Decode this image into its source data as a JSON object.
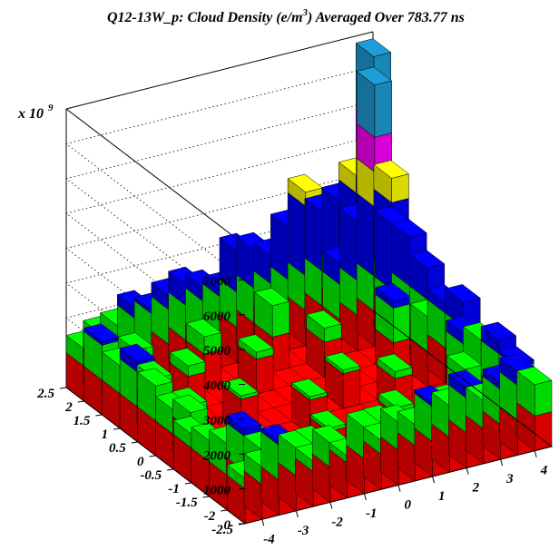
{
  "chart_data": {
    "type": "lego",
    "title": "Q12-13W_p: Cloud Density (e/m",
    "title_sup": "3",
    "title_tail": ") Averaged Over 783.77 ns",
    "z_multiplier": "x 10",
    "z_multiplier_exp": "9",
    "zlim": [
      0,
      8000
    ],
    "z_ticks": [
      "0",
      "1000",
      "2000",
      "3000",
      "4000",
      "5000",
      "6000",
      "7000"
    ],
    "x_ticks": [
      "-4",
      "-3",
      "-2",
      "-1",
      "0",
      "1",
      "2",
      "3",
      "4"
    ],
    "y_ticks": [
      "-2.5",
      "-2",
      "-1.5",
      "-1",
      "-0.5",
      "0",
      "0.5",
      "1",
      "1.5",
      "2",
      "2.5"
    ],
    "xlim": [
      -4.5,
      4.5
    ],
    "ylim": [
      -2.5,
      2.5
    ],
    "grid": true,
    "color_bands": [
      {
        "upto": 1000,
        "color": "#ff0000"
      },
      {
        "upto": 2000,
        "color": "#00ff00"
      },
      {
        "upto": 4000,
        "color": "#0000ff"
      },
      {
        "upto": 5000,
        "color": "#ffff00"
      },
      {
        "upto": 6000,
        "color": "#ff00ff"
      },
      {
        "upto": 8000,
        "color": "#1e9ed6"
      }
    ],
    "bins": [
      {
        "x": -4.25,
        "y": -2.25,
        "z": 1300
      },
      {
        "x": -4.25,
        "y": -1.75,
        "z": 1900
      },
      {
        "x": -4.25,
        "y": -1.25,
        "z": 1600
      },
      {
        "x": -4.25,
        "y": -0.75,
        "z": 1400
      },
      {
        "x": -4.25,
        "y": -0.25,
        "z": 1700
      },
      {
        "x": -4.25,
        "y": 0.25,
        "z": 2000
      },
      {
        "x": -4.25,
        "y": 0.75,
        "z": 2300
      },
      {
        "x": -4.25,
        "y": 1.25,
        "z": 1800
      },
      {
        "x": -4.25,
        "y": 1.75,
        "z": 2100
      },
      {
        "x": -4.25,
        "y": 2.25,
        "z": 1500
      },
      {
        "x": -3.75,
        "y": -2.25,
        "z": 1500
      },
      {
        "x": -3.75,
        "y": -1.75,
        "z": 2200
      },
      {
        "x": -3.75,
        "y": 2.25,
        "z": 1800
      },
      {
        "x": -3.25,
        "y": -2.25,
        "z": 2100
      },
      {
        "x": -3.25,
        "y": 2.25,
        "z": 1900
      },
      {
        "x": -2.75,
        "y": -2.25,
        "z": 1800
      },
      {
        "x": -2.75,
        "y": 2.25,
        "z": 2300
      },
      {
        "x": -2.25,
        "y": -2.25,
        "z": 1300
      },
      {
        "x": -2.25,
        "y": 2.25,
        "z": 2100
      },
      {
        "x": -1.75,
        "y": -2.25,
        "z": 1700
      },
      {
        "x": -1.75,
        "y": 2.25,
        "z": 2400
      },
      {
        "x": -1.25,
        "y": -2.25,
        "z": 1200
      },
      {
        "x": -1.25,
        "y": 2.25,
        "z": 2600
      },
      {
        "x": -0.75,
        "y": -2.25,
        "z": 1900
      },
      {
        "x": -0.75,
        "y": 2.25,
        "z": 2400
      },
      {
        "x": -0.25,
        "y": -2.25,
        "z": 1400
      },
      {
        "x": -0.25,
        "y": 2.25,
        "z": 2200
      },
      {
        "x": 0.25,
        "y": -2.25,
        "z": 1800
      },
      {
        "x": 0.25,
        "y": 2.25,
        "z": 3200
      },
      {
        "x": 0.75,
        "y": -2.25,
        "z": 1600
      },
      {
        "x": 0.75,
        "y": 2.25,
        "z": 3100
      },
      {
        "x": 1.25,
        "y": -2.25,
        "z": 2100
      },
      {
        "x": 1.25,
        "y": 2.25,
        "z": 2800
      },
      {
        "x": 1.75,
        "y": -2.25,
        "z": 1900
      },
      {
        "x": 1.75,
        "y": 2.25,
        "z": 3500
      },
      {
        "x": 2.25,
        "y": -2.25,
        "z": 2300
      },
      {
        "x": 2.25,
        "y": 2.25,
        "z": 4400
      },
      {
        "x": 2.75,
        "y": -2.25,
        "z": 1800
      },
      {
        "x": 2.75,
        "y": 2.25,
        "z": 3700
      },
      {
        "x": 3.25,
        "y": -2.25,
        "z": 2200
      },
      {
        "x": 3.25,
        "y": 2.25,
        "z": 3900
      },
      {
        "x": 3.75,
        "y": -2.25,
        "z": 2400
      },
      {
        "x": 3.75,
        "y": 2.25,
        "z": 4500
      },
      {
        "x": 4.25,
        "y": -2.25,
        "z": 1900
      },
      {
        "x": 4.25,
        "y": -1.75,
        "z": 2100
      },
      {
        "x": 4.25,
        "y": -1.25,
        "z": 2400
      },
      {
        "x": 4.25,
        "y": -0.75,
        "z": 2000
      },
      {
        "x": 4.25,
        "y": -0.25,
        "z": 2700
      },
      {
        "x": 4.25,
        "y": 0.25,
        "z": 2300
      },
      {
        "x": 4.25,
        "y": 0.75,
        "z": 2900
      },
      {
        "x": 4.25,
        "y": 1.25,
        "z": 3400
      },
      {
        "x": 4.25,
        "y": 1.75,
        "z": 4700
      },
      {
        "x": 4.25,
        "y": 2.25,
        "z": 7800
      },
      {
        "x": 3.75,
        "y": 1.75,
        "z": 7500
      },
      {
        "x": 3.75,
        "y": 1.25,
        "z": 3900
      },
      {
        "x": 3.25,
        "y": 1.75,
        "z": 3700
      },
      {
        "x": -3.25,
        "y": -1.75,
        "z": 1500
      },
      {
        "x": -2.75,
        "y": -1.25,
        "z": 1200
      },
      {
        "x": -1.75,
        "y": -1.75,
        "z": 1300
      },
      {
        "x": -0.75,
        "y": -1.25,
        "z": 1100
      },
      {
        "x": 0.25,
        "y": -1.75,
        "z": 1400
      },
      {
        "x": 1.25,
        "y": -1.25,
        "z": 1200
      },
      {
        "x": 2.25,
        "y": -1.75,
        "z": 1500
      },
      {
        "x": 3.25,
        "y": -1.25,
        "z": 1800
      },
      {
        "x": -3.25,
        "y": 1.75,
        "z": 1600
      },
      {
        "x": -2.25,
        "y": 1.25,
        "z": 1300
      },
      {
        "x": -1.25,
        "y": 1.75,
        "z": 1500
      },
      {
        "x": -0.25,
        "y": 1.25,
        "z": 1200
      },
      {
        "x": 0.75,
        "y": 1.75,
        "z": 1900
      },
      {
        "x": 1.75,
        "y": 1.25,
        "z": 1400
      },
      {
        "x": 2.75,
        "y": 1.75,
        "z": 2600
      },
      {
        "x": 3.25,
        "y": 0.75,
        "z": 2200
      },
      {
        "x": 3.75,
        "y": 0.25,
        "z": 2000
      },
      {
        "x": 3.75,
        "y": -0.75,
        "z": 2300
      },
      {
        "x": -3.75,
        "y": 0.75,
        "z": 1700
      },
      {
        "x": -3.75,
        "y": -0.25,
        "z": 1500
      },
      {
        "x": -3.25,
        "y": 0.25,
        "z": 1200
      },
      {
        "x": -1.75,
        "y": 0.25,
        "z": 1100
      },
      {
        "x": -0.25,
        "y": -0.25,
        "z": 1100
      },
      {
        "x": 1.25,
        "y": 0.25,
        "z": 1100
      },
      {
        "x": 2.25,
        "y": -0.25,
        "z": 1200
      }
    ]
  }
}
